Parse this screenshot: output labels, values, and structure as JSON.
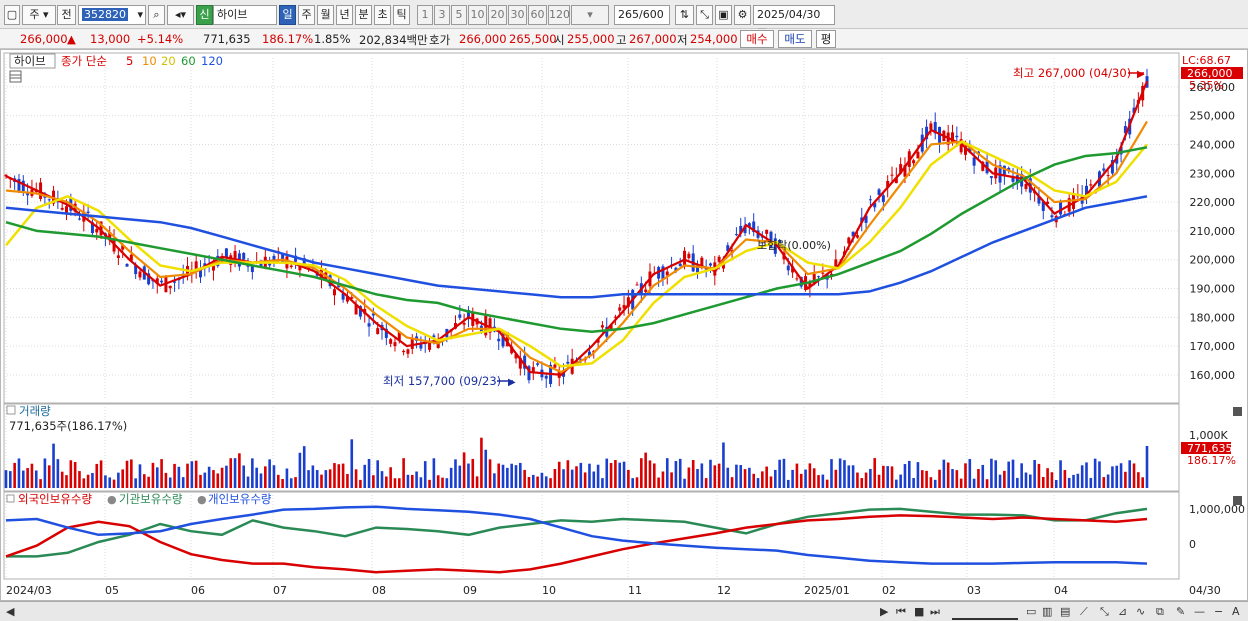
{
  "toolbar": {
    "mode": "주",
    "prev": "전",
    "code": "352820",
    "name": "하이브",
    "badge": "신",
    "periods": [
      "일",
      "주",
      "월",
      "년",
      "분",
      "초",
      "틱"
    ],
    "intervals": [
      "1",
      "3",
      "5",
      "10",
      "20",
      "30",
      "60",
      "120"
    ],
    "count": "265",
    "count_total": "/600",
    "date": "2025/04/30"
  },
  "quote": {
    "price": "266,000",
    "change": "13,000",
    "change_pct": "+5.14%",
    "volume": "771,635",
    "vol_ratio": "186.17%",
    "turnover_pct": "1.85%",
    "amount": "202,834백만",
    "bid_label": "호가",
    "ask": "266,000",
    "bid": "265,500",
    "open_label": "시",
    "open": "255,000",
    "high_label": "고",
    "high": "267,000",
    "low_label": "저",
    "low": "254,000",
    "buy_label": "매수",
    "sell_label": "매도",
    "eval_label": "평"
  },
  "chart_legend": {
    "stock": "하이브",
    "ma_label": "종가 단순",
    "ma_periods": [
      "5",
      "10",
      "20",
      "60",
      "120"
    ],
    "ma_colors": [
      "#d80000",
      "#f08a00",
      "#f0e000",
      "#1e9a30",
      "#2050e0"
    ]
  },
  "annotations": {
    "high_note": "최고 267,000 (04/30)",
    "low_note": "최저 157,700 (09/23)",
    "mid_note": "보합락(0.00%)",
    "lc": "LC:68.67",
    "last_price": "266,000",
    "last_pct": "5.35%"
  },
  "volume_panel": {
    "title": "거래량",
    "value": "771,635주(186.17%)",
    "axis_label": "1,000K",
    "tag": "771,635",
    "tag_pct": "186.17%"
  },
  "holdings_panel": {
    "series": [
      "외국인보유수량",
      "기관보유수량",
      "개인보유수량"
    ],
    "series_colors": [
      "#d80000",
      "#2a8a55",
      "#2050e0"
    ],
    "axis": [
      "1,000,000",
      "0"
    ]
  },
  "x_labels": [
    "2024/03",
    "05",
    "06",
    "07",
    "08",
    "09",
    "10",
    "11",
    "12",
    "2025/01",
    "02",
    "03",
    "04"
  ],
  "x_end_label": "04/30",
  "chart_data": {
    "type": "line",
    "title": "",
    "y_ticks": [
      160000,
      170000,
      180000,
      190000,
      200000,
      210000,
      220000,
      230000,
      240000,
      250000,
      260000
    ],
    "y_tick_labels": [
      "160,000",
      "170,000",
      "180,000",
      "190,000",
      "200,000",
      "210,000",
      "220,000",
      "230,000",
      "240,000",
      "250,000",
      "260,000"
    ],
    "ylim": [
      152000,
      270000
    ],
    "x_range": [
      "2024/03",
      "2025/04/30"
    ],
    "series": [
      {
        "name": "5",
        "values": [
          229000,
          224000,
          219000,
          211000,
          200000,
          191000,
          195000,
          201000,
          199000,
          200000,
          196000,
          188000,
          178000,
          170000,
          172000,
          180000,
          175000,
          161000,
          160000,
          170000,
          182000,
          195000,
          200000,
          196000,
          212000,
          205000,
          190000,
          198000,
          218000,
          230000,
          245000,
          240000,
          230000,
          228000,
          216000,
          222000,
          235000,
          262000
        ]
      },
      {
        "name": "10",
        "values": [
          224000,
          223000,
          220000,
          213000,
          203000,
          194000,
          195000,
          200000,
          199000,
          200000,
          197000,
          190000,
          181000,
          173000,
          171000,
          176000,
          176000,
          166000,
          161000,
          167000,
          178000,
          191000,
          198000,
          197000,
          207000,
          206000,
          195000,
          197000,
          212000,
          226000,
          240000,
          241000,
          233000,
          229000,
          220000,
          221000,
          230000,
          248000
        ]
      },
      {
        "name": "20",
        "values": [
          205000,
          218000,
          222000,
          217000,
          207000,
          198000,
          196000,
          199000,
          199000,
          199000,
          198000,
          193000,
          184000,
          177000,
          172000,
          174000,
          176000,
          170000,
          163000,
          164000,
          172000,
          185000,
          194000,
          197000,
          203000,
          206000,
          199000,
          197000,
          206000,
          218000,
          233000,
          241000,
          236000,
          231000,
          224000,
          222000,
          227000,
          240000
        ]
      },
      {
        "name": "60",
        "values": [
          213000,
          210000,
          209000,
          208000,
          206000,
          204000,
          202000,
          200000,
          198000,
          196000,
          194000,
          191000,
          188000,
          186000,
          185000,
          182000,
          180000,
          178000,
          176000,
          175000,
          176000,
          178000,
          181000,
          184000,
          187000,
          190000,
          192000,
          195000,
          199000,
          203000,
          209000,
          216000,
          222000,
          228000,
          233000,
          236000,
          237000,
          239000
        ]
      },
      {
        "name": "120",
        "values": [
          218000,
          217000,
          216000,
          215000,
          214000,
          213000,
          211000,
          208000,
          205000,
          202000,
          199000,
          197000,
          195000,
          193000,
          191000,
          190000,
          189000,
          188000,
          187000,
          187000,
          188000,
          188000,
          188000,
          188000,
          188000,
          188000,
          188000,
          188000,
          189000,
          192000,
          196000,
          201000,
          206000,
          210000,
          214000,
          218000,
          220000,
          222000
        ]
      }
    ],
    "extremes": {
      "high": 267000,
      "high_date": "04/30",
      "low": 157700,
      "low_date": "09/23"
    }
  }
}
